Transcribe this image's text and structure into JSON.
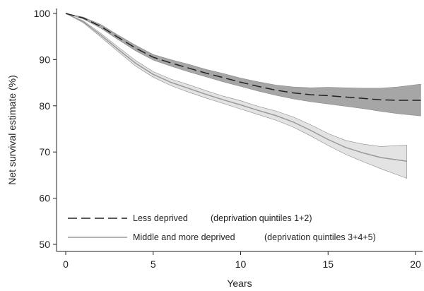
{
  "chart_data": {
    "type": "line",
    "xlabel": "Years",
    "ylabel": "Net survival estimate (%)",
    "xlim": [
      0,
      20.5
    ],
    "ylim": [
      49,
      100
    ],
    "x_ticks": [
      0,
      5,
      10,
      15,
      20
    ],
    "y_ticks": [
      50,
      60,
      70,
      80,
      90,
      100
    ],
    "grid": false,
    "legend_position": "bottom-left",
    "series": [
      {
        "name": "Less deprived",
        "note": "(deprivation quintiles 1+2)",
        "line_style": "dashed",
        "line_color": "#222222",
        "band_color": "#a6a6a6",
        "x": [
          0,
          1,
          2,
          3,
          4,
          5,
          6,
          7,
          8,
          9,
          10,
          11,
          12,
          13,
          14,
          15,
          16,
          17,
          18,
          19,
          20.3
        ],
        "y": [
          100,
          99.0,
          97.2,
          94.8,
          92.5,
          90.5,
          89.3,
          88.2,
          87.1,
          86.1,
          85.1,
          84.2,
          83.4,
          82.8,
          82.4,
          82.2,
          81.9,
          81.6,
          81.3,
          81.2,
          81.2
        ],
        "lower": [
          100,
          98.8,
          96.8,
          94.3,
          91.9,
          89.9,
          88.6,
          87.4,
          86.3,
          85.2,
          84.2,
          83.2,
          82.3,
          81.5,
          80.9,
          80.4,
          79.9,
          79.4,
          78.8,
          78.3,
          77.8
        ],
        "upper": [
          100,
          99.2,
          97.6,
          95.3,
          93.1,
          91.1,
          90.0,
          89.0,
          87.9,
          87.0,
          86.0,
          85.2,
          84.5,
          84.1,
          83.9,
          84.0,
          83.9,
          83.8,
          83.8,
          84.1,
          84.7
        ]
      },
      {
        "name": "Middle and more deprived",
        "note": "(deprivation quintiles 3+4+5)",
        "line_style": "solid",
        "line_color": "#9a9a9a",
        "band_color": "#e3e3e3",
        "x": [
          0,
          1,
          2,
          3,
          4,
          5,
          6,
          7,
          8,
          9,
          10,
          11,
          12,
          13,
          14,
          15,
          16,
          17,
          18,
          19.5
        ],
        "y": [
          100,
          98.2,
          95.3,
          92.2,
          89.2,
          86.8,
          85.1,
          83.8,
          82.5,
          81.3,
          80.2,
          79.0,
          77.9,
          76.5,
          74.7,
          72.7,
          71.0,
          69.8,
          68.8,
          68.0
        ],
        "lower": [
          100,
          98.0,
          94.9,
          91.7,
          88.6,
          86.2,
          84.4,
          83.0,
          81.7,
          80.5,
          79.3,
          78.1,
          76.9,
          75.4,
          73.5,
          71.4,
          69.5,
          67.9,
          66.4,
          64.3
        ],
        "upper": [
          100,
          98.4,
          95.7,
          92.7,
          89.8,
          87.4,
          85.8,
          84.6,
          83.3,
          82.1,
          81.1,
          79.9,
          78.9,
          77.6,
          75.9,
          74.0,
          72.5,
          71.7,
          71.2,
          71.5
        ]
      }
    ]
  }
}
